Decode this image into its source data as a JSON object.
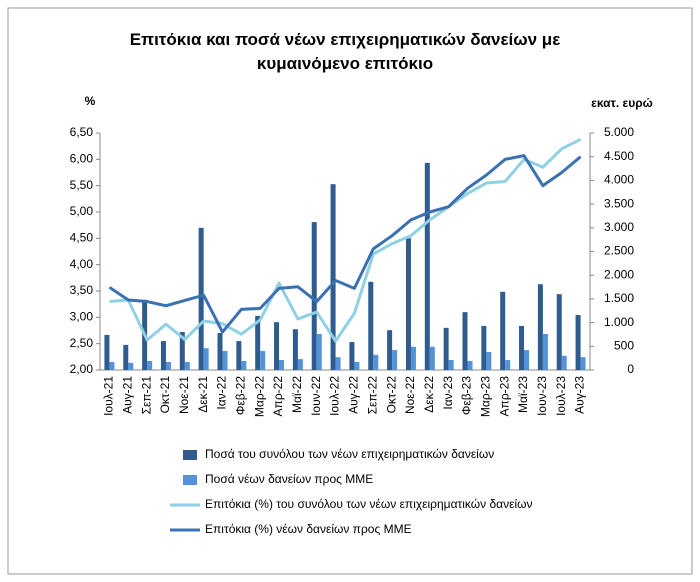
{
  "chart_data": {
    "type": "combo",
    "title": "Επιτόκια και ποσά νέων επιχειρηματικών δανείων με κυμαινόμενο επιτόκιο",
    "y_label": "%",
    "y2_label": "εκατ. ευρώ",
    "categories": [
      "Ιουλ-21",
      "Αυγ-21",
      "Σεπ-21",
      "Οκτ-21",
      "Νοε-21",
      "Δεκ-21",
      "Ιαν-22",
      "Φεβ-22",
      "Μαρ-22",
      "Απρ-22",
      "Μαϊ-22",
      "Ιουν-22",
      "Ιουλ-22",
      "Αυγ-22",
      "Σεπ-22",
      "Οκτ-22",
      "Νοε-22",
      "Δεκ-22",
      "Ιαν-23",
      "Φεβ-23",
      "Μαρ-23",
      "Απρ-23",
      "Μαϊ-23",
      "Ιουν-23",
      "Ιουλ-23",
      "Αυγ-23"
    ],
    "series": [
      {
        "name": "Ποσά του συνόλου των νέων επιχειρηματικών δανείων",
        "type": "bar",
        "axis": "y2",
        "color": "#2f5b8f",
        "values": [
          740,
          530,
          1480,
          610,
          800,
          3000,
          780,
          610,
          1140,
          1010,
          860,
          3120,
          3920,
          590,
          1860,
          840,
          2780,
          4370,
          890,
          1220,
          930,
          1650,
          930,
          1810,
          1600,
          1160
        ]
      },
      {
        "name": "Ποσά νέων δανείων προς ΜΜΕ",
        "type": "bar",
        "axis": "y2",
        "color": "#5592d8",
        "values": [
          170,
          150,
          190,
          170,
          170,
          460,
          400,
          190,
          400,
          210,
          230,
          760,
          270,
          170,
          320,
          420,
          490,
          490,
          210,
          190,
          380,
          210,
          420,
          760,
          300,
          270
        ]
      },
      {
        "name": "Επιτόκια (%) του συνόλου των νέων επιχειρηματικών δανείων",
        "type": "line",
        "color": "#8fd0e2",
        "values": [
          3.3,
          3.33,
          2.57,
          2.87,
          2.58,
          2.93,
          2.88,
          2.68,
          2.95,
          3.65,
          2.97,
          3.1,
          2.55,
          3.08,
          4.2,
          4.4,
          4.55,
          4.85,
          5.1,
          5.35,
          5.55,
          5.58,
          6.0,
          5.85,
          6.2,
          6.38
        ]
      },
      {
        "name": "Επιτόκια (%) νέων δανείων προς ΜΜΕ",
        "type": "line",
        "color": "#3b70b2",
        "values": [
          3.57,
          3.33,
          3.3,
          3.22,
          3.32,
          3.42,
          2.72,
          3.15,
          3.17,
          3.55,
          3.58,
          3.3,
          3.7,
          3.55,
          4.3,
          4.55,
          4.85,
          5.0,
          5.1,
          5.45,
          5.7,
          6.0,
          6.07,
          5.5,
          5.75,
          6.05
        ]
      }
    ],
    "ylim": [
      2.0,
      6.5
    ],
    "yticks": [
      {
        "value": 2.0,
        "label": "2,00"
      },
      {
        "value": 2.5,
        "label": "2,50"
      },
      {
        "value": 3.0,
        "label": "3,00"
      },
      {
        "value": 3.5,
        "label": "3,50"
      },
      {
        "value": 4.0,
        "label": "4,00"
      },
      {
        "value": 4.5,
        "label": "4,50"
      },
      {
        "value": 5.0,
        "label": "5,00"
      },
      {
        "value": 5.5,
        "label": "5,50"
      },
      {
        "value": 6.0,
        "label": "6,00"
      },
      {
        "value": 6.5,
        "label": "6,50"
      }
    ],
    "y2lim": [
      0,
      5000
    ],
    "y2ticks": [
      0,
      500,
      {
        "value": 1000,
        "label": "1.000"
      },
      {
        "value": 1500,
        "label": "1.500"
      },
      {
        "value": 2000,
        "label": "2.000"
      },
      {
        "value": 2500,
        "label": "2.500"
      },
      {
        "value": 3000,
        "label": "3.000"
      },
      {
        "value": 3500,
        "label": "3.500"
      },
      {
        "value": 4000,
        "label": "4.000"
      },
      {
        "value": 4500,
        "label": "4.500"
      },
      {
        "value": 5000,
        "label": "5.000"
      }
    ],
    "legend": "bottom",
    "grid": false
  }
}
